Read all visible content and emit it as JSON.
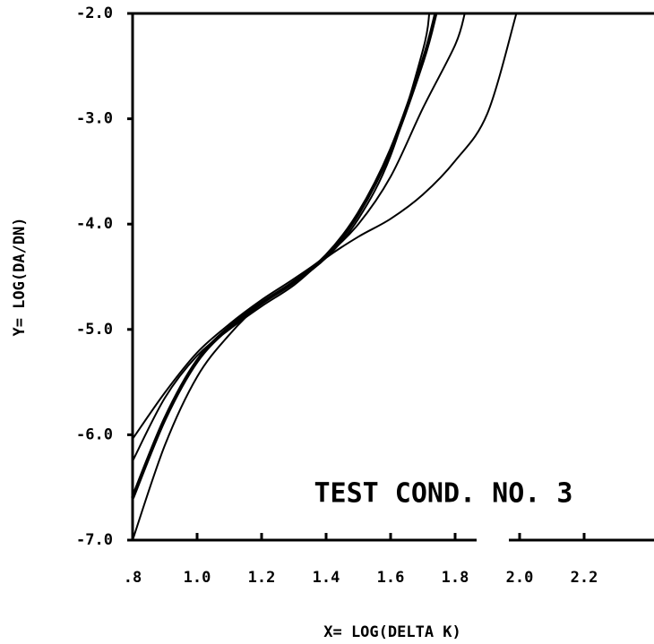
{
  "chart_data": {
    "type": "line",
    "annotation": "TEST COND. NO. 3",
    "xlabel": "X= LOG(DELTA K)",
    "ylabel": "Y= LOG(DA/DN)",
    "xlim": [
      0.8,
      2.4
    ],
    "ylim": [
      -7,
      -2
    ],
    "xticks": [
      {
        "value": 0.8,
        "label": ".8"
      },
      {
        "value": 1.0,
        "label": "1.0"
      },
      1.2,
      1.4,
      1.6,
      1.8,
      {
        "value": 2.0,
        "label": "2.0"
      },
      2.2
    ],
    "yticks": [
      {
        "value": -7,
        "label": "-7.0"
      },
      {
        "value": -6,
        "label": "-6.0"
      },
      {
        "value": -5,
        "label": "-5.0"
      },
      {
        "value": -4,
        "label": "-4.0"
      },
      {
        "value": -3,
        "label": "-3.0"
      },
      {
        "value": -2,
        "label": "-2.0"
      }
    ],
    "series": [
      {
        "color": "#000000",
        "width": 4,
        "x": [
          0.8,
          0.9,
          1.0,
          1.1,
          1.2,
          1.3,
          1.4,
          1.5,
          1.6,
          1.7,
          1.74
        ],
        "values": [
          -6.6,
          -5.85,
          -5.3,
          -4.98,
          -4.75,
          -4.55,
          -4.3,
          -3.9,
          -3.3,
          -2.45,
          -2.0
        ]
      },
      {
        "color": "#000000",
        "width": 2,
        "x": [
          0.8,
          0.9,
          1.0,
          1.1,
          1.2,
          1.3,
          1.4,
          1.5,
          1.6,
          1.7,
          1.8,
          1.83
        ],
        "values": [
          -6.04,
          -5.6,
          -5.22,
          -4.95,
          -4.72,
          -4.52,
          -4.3,
          -4.0,
          -3.55,
          -2.9,
          -2.3,
          -2.0
        ]
      },
      {
        "color": "#000000",
        "width": 2,
        "x": [
          0.8,
          0.9,
          1.0,
          1.1,
          1.2,
          1.3,
          1.4,
          1.5,
          1.6,
          1.7,
          1.8,
          1.9,
          1.99
        ],
        "values": [
          -6.25,
          -5.65,
          -5.25,
          -5.0,
          -4.78,
          -4.58,
          -4.32,
          -4.12,
          -3.95,
          -3.72,
          -3.4,
          -2.95,
          -2.0
        ]
      },
      {
        "color": "#000000",
        "width": 2,
        "x": [
          0.8,
          0.9,
          1.0,
          1.1,
          1.2,
          1.3,
          1.4,
          1.5,
          1.6,
          1.7,
          1.72
        ],
        "values": [
          -7.0,
          -6.1,
          -5.45,
          -5.05,
          -4.75,
          -4.55,
          -4.32,
          -3.95,
          -3.35,
          -2.35,
          -2.0
        ]
      }
    ]
  }
}
